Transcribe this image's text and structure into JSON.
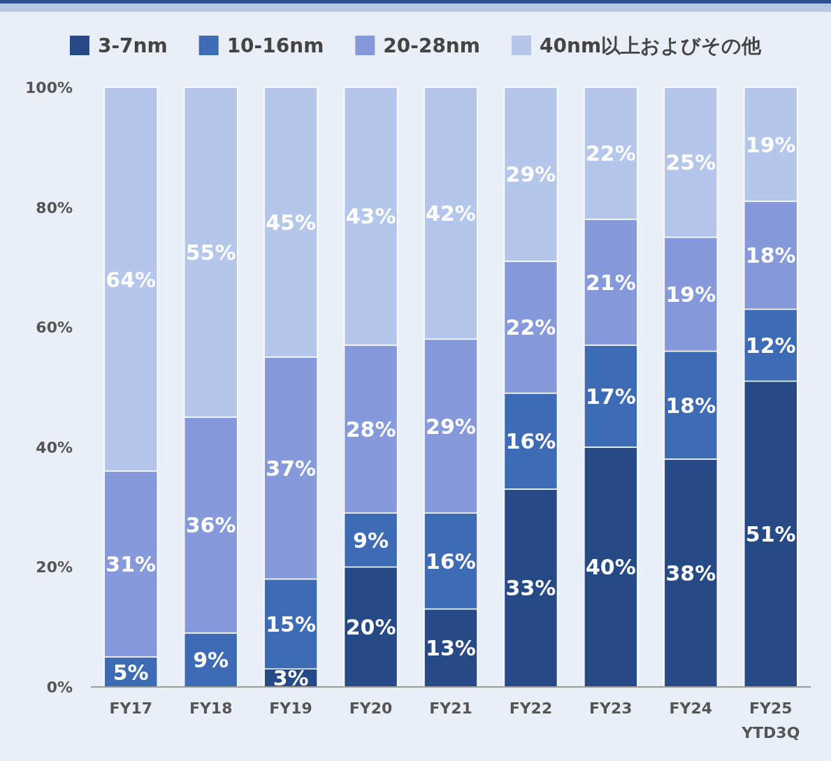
{
  "chart_data": {
    "type": "bar",
    "stacked": true,
    "categories": [
      "FY17",
      "FY18",
      "FY19",
      "FY20",
      "FY21",
      "FY22",
      "FY23",
      "FY24",
      "FY25 YTD3Q"
    ],
    "series": [
      {
        "name": "3-7nm",
        "color": "#264a85",
        "values": [
          0,
          0,
          3,
          20,
          13,
          33,
          40,
          38,
          51
        ],
        "value_labels": [
          null,
          null,
          "3%",
          "20%",
          "13%",
          "33%",
          "40%",
          "38%",
          "51%"
        ]
      },
      {
        "name": "10-16nm",
        "color": "#3d6bb5",
        "values": [
          5,
          9,
          15,
          9,
          16,
          16,
          17,
          18,
          12
        ],
        "value_labels": [
          "5%",
          "9%",
          "15%",
          "9%",
          "16%",
          "16%",
          "17%",
          "18%",
          "12%"
        ]
      },
      {
        "name": "20-28nm",
        "color": "#8599db",
        "values": [
          31,
          36,
          37,
          28,
          29,
          22,
          21,
          19,
          18
        ],
        "value_labels": [
          "31%",
          "36%",
          "37%",
          "28%",
          "29%",
          "22%",
          "21%",
          "19%",
          "18%"
        ]
      },
      {
        "name": "40nm以上およびその他",
        "color": "#b4c7ea",
        "values": [
          64,
          55,
          45,
          43,
          42,
          29,
          22,
          25,
          19
        ],
        "value_labels": [
          "64%",
          "55%",
          "45%",
          "43%",
          "42%",
          "29%",
          "22%",
          "25%",
          "19%"
        ]
      }
    ],
    "ylim": [
      0,
      100
    ],
    "yticks": [
      {
        "value": 0,
        "label": "0%"
      },
      {
        "value": 20,
        "label": "20%"
      },
      {
        "value": 40,
        "label": "40%"
      },
      {
        "value": 60,
        "label": "60%"
      },
      {
        "value": 80,
        "label": "80%"
      },
      {
        "value": 100,
        "label": "100%"
      }
    ],
    "legend": "top"
  }
}
